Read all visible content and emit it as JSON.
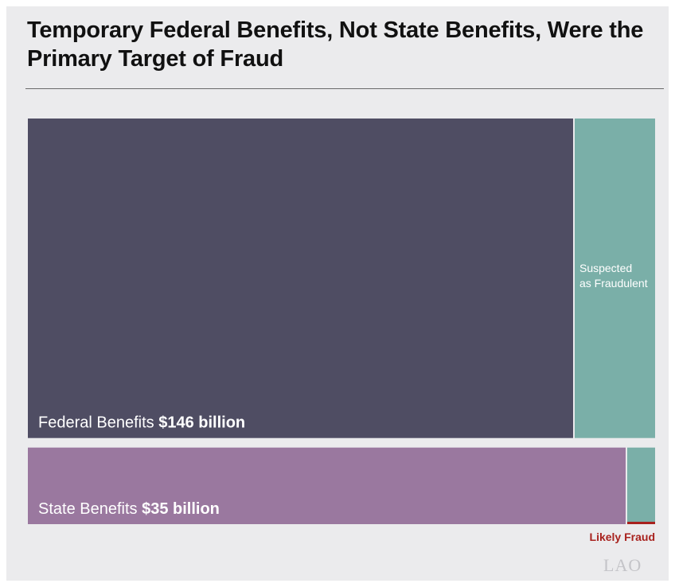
{
  "title": "Temporary Federal Benefits, Not State Benefits, Were the Primary Target of Fraud",
  "logo_text": "LAO",
  "colors": {
    "background": "#ebebed",
    "federal": "#4f4d63",
    "state": "#9a789f",
    "suspected": "#7aafa8",
    "likely_fraud": "#a8221e"
  },
  "chart_data": {
    "type": "treemap",
    "unit": "billion",
    "rows": [
      {
        "name": "Federal Benefits",
        "amount_label": "$146 billion",
        "value": 146,
        "segments": [
          {
            "name": "Federal Benefits",
            "value": 127.1
          },
          {
            "name": "Suspected as Fraudulent",
            "value": 18.9
          }
        ]
      },
      {
        "name": "State Benefits",
        "amount_label": "$35 billion",
        "value": 35,
        "segments": [
          {
            "name": "State Benefits",
            "value": 33.4
          },
          {
            "name": "Suspected as Fraudulent",
            "value": 1.6
          }
        ],
        "likely_fraud_value": 0.15
      }
    ],
    "annotations": {
      "suspected_line1": "Suspected",
      "suspected_line2": "as Fraudulent",
      "likely_fraud": "Likely Fraud"
    }
  }
}
